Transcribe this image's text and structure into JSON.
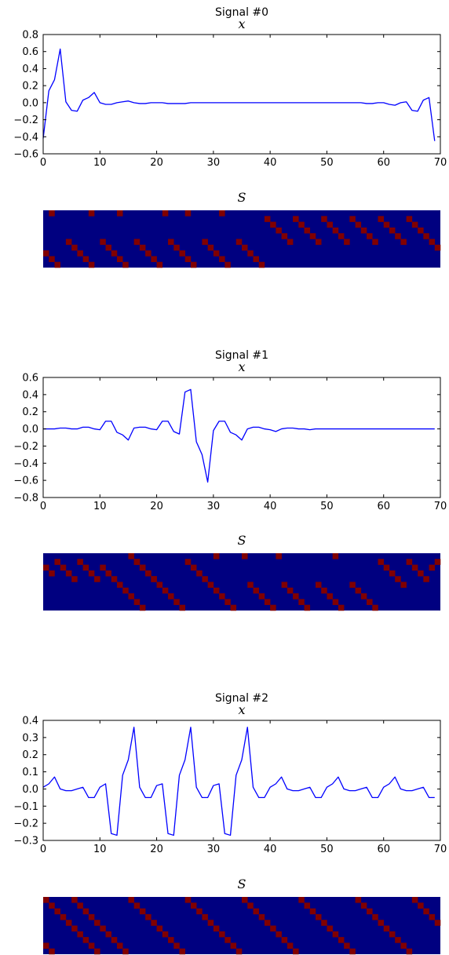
{
  "colors": {
    "line": "#0000ff",
    "matrix_bg": "#000080",
    "matrix_on": "#800000",
    "axis": "#000000"
  },
  "chart_data": [
    {
      "type": "line",
      "title": "Signal #0",
      "subtitle": "x",
      "xlim": [
        0,
        70
      ],
      "ylim": [
        -0.6,
        0.8
      ],
      "xticks": [
        "0",
        "10",
        "20",
        "30",
        "40",
        "50",
        "60",
        "70"
      ],
      "yticks": [
        "0.8",
        "0.6",
        "0.4",
        "0.2",
        "0.0",
        "−0.2",
        "−0.4",
        "−0.6"
      ],
      "grid": false,
      "series": [
        {
          "x": [
            0,
            1,
            2,
            3,
            4,
            5,
            6,
            7,
            8,
            9,
            10,
            11,
            12,
            13,
            14,
            15,
            16,
            17,
            18,
            19,
            20,
            21,
            22,
            23,
            24,
            25,
            26,
            27,
            28,
            29,
            30,
            31,
            32,
            33,
            34,
            35,
            36,
            37,
            38,
            39,
            40,
            41,
            42,
            43,
            44,
            45,
            46,
            47,
            48,
            49,
            50,
            51,
            52,
            53,
            54,
            55,
            56,
            57,
            58,
            59,
            60,
            61,
            62,
            63,
            64,
            65,
            66,
            67,
            68,
            69
          ],
          "y": [
            -0.42,
            0.14,
            0.27,
            0.63,
            0.01,
            -0.09,
            -0.1,
            0.03,
            0.06,
            0.12,
            0.0,
            -0.02,
            -0.02,
            0.0,
            0.01,
            0.02,
            0.0,
            -0.01,
            -0.01,
            0.0,
            0.0,
            0.0,
            -0.01,
            -0.01,
            -0.01,
            -0.01,
            0.0,
            0.0,
            0.0,
            0.0,
            0.0,
            0.0,
            0.0,
            0.0,
            0.0,
            0.0,
            0.0,
            0.0,
            0.0,
            0.0,
            0.0,
            0.0,
            0.0,
            0.0,
            0.0,
            0.0,
            0.0,
            0.0,
            0.0,
            0.0,
            0.0,
            0.0,
            0.0,
            0.0,
            0.0,
            0.0,
            0.0,
            -0.01,
            -0.01,
            0.0,
            0.0,
            -0.02,
            -0.03,
            0.0,
            0.01,
            -0.09,
            -0.1,
            0.03,
            0.06,
            -0.45
          ]
        }
      ]
    },
    {
      "type": "heatmap",
      "title": "S",
      "cols": 70,
      "rows": 10,
      "active_cells": [
        [
          1,
          0
        ],
        [
          8,
          0
        ],
        [
          13,
          0
        ],
        [
          21,
          0
        ],
        [
          25,
          0
        ],
        [
          31,
          0
        ],
        [
          39,
          1
        ],
        [
          40,
          2
        ],
        [
          41,
          3
        ],
        [
          42,
          4
        ],
        [
          43,
          5
        ],
        [
          44,
          1
        ],
        [
          45,
          2
        ],
        [
          46,
          3
        ],
        [
          47,
          4
        ],
        [
          48,
          5
        ],
        [
          49,
          1
        ],
        [
          50,
          2
        ],
        [
          51,
          3
        ],
        [
          52,
          4
        ],
        [
          53,
          5
        ],
        [
          54,
          1
        ],
        [
          55,
          2
        ],
        [
          56,
          3
        ],
        [
          57,
          4
        ],
        [
          58,
          5
        ],
        [
          59,
          1
        ],
        [
          60,
          2
        ],
        [
          61,
          3
        ],
        [
          62,
          4
        ],
        [
          63,
          5
        ],
        [
          64,
          1
        ],
        [
          65,
          2
        ],
        [
          66,
          3
        ],
        [
          67,
          4
        ],
        [
          68,
          5
        ],
        [
          69,
          6
        ],
        [
          4,
          5
        ],
        [
          5,
          6
        ],
        [
          6,
          7
        ],
        [
          7,
          8
        ],
        [
          8,
          9
        ],
        [
          10,
          5
        ],
        [
          11,
          6
        ],
        [
          12,
          7
        ],
        [
          13,
          8
        ],
        [
          14,
          9
        ],
        [
          16,
          5
        ],
        [
          17,
          6
        ],
        [
          18,
          7
        ],
        [
          19,
          8
        ],
        [
          20,
          9
        ],
        [
          22,
          5
        ],
        [
          23,
          6
        ],
        [
          24,
          7
        ],
        [
          25,
          8
        ],
        [
          26,
          9
        ],
        [
          28,
          5
        ],
        [
          29,
          6
        ],
        [
          30,
          7
        ],
        [
          31,
          8
        ],
        [
          32,
          9
        ],
        [
          34,
          5
        ],
        [
          35,
          6
        ],
        [
          36,
          7
        ],
        [
          37,
          8
        ],
        [
          38,
          9
        ],
        [
          0,
          7
        ],
        [
          1,
          8
        ],
        [
          2,
          9
        ]
      ]
    },
    {
      "type": "line",
      "title": "Signal #1",
      "subtitle": "x",
      "xlim": [
        0,
        70
      ],
      "ylim": [
        -0.8,
        0.6
      ],
      "xticks": [
        "0",
        "10",
        "20",
        "30",
        "40",
        "50",
        "60",
        "70"
      ],
      "yticks": [
        "0.6",
        "0.4",
        "0.2",
        "0.0",
        "−0.2",
        "−0.4",
        "−0.6",
        "−0.8"
      ],
      "grid": false,
      "series": [
        {
          "x": [
            0,
            1,
            2,
            3,
            4,
            5,
            6,
            7,
            8,
            9,
            10,
            11,
            12,
            13,
            14,
            15,
            16,
            17,
            18,
            19,
            20,
            21,
            22,
            23,
            24,
            25,
            26,
            27,
            28,
            29,
            30,
            31,
            32,
            33,
            34,
            35,
            36,
            37,
            38,
            39,
            40,
            41,
            42,
            43,
            44,
            45,
            46,
            47,
            48,
            49,
            50,
            51,
            52,
            53,
            54,
            55,
            56,
            57,
            58,
            59,
            60,
            61,
            62,
            63,
            64,
            65,
            66,
            67,
            68,
            69
          ],
          "y": [
            0.0,
            0.0,
            0.0,
            0.01,
            0.01,
            0.0,
            0.0,
            0.02,
            0.02,
            0.0,
            -0.01,
            0.09,
            0.09,
            -0.04,
            -0.07,
            -0.13,
            0.01,
            0.02,
            0.02,
            0.0,
            -0.01,
            0.09,
            0.09,
            -0.03,
            -0.06,
            0.43,
            0.46,
            -0.15,
            -0.3,
            -0.62,
            -0.02,
            0.09,
            0.09,
            -0.04,
            -0.07,
            -0.13,
            0.0,
            0.02,
            0.02,
            0.0,
            -0.01,
            -0.03,
            0.0,
            0.01,
            0.01,
            0.0,
            0.0,
            -0.01,
            0.0,
            0.0,
            0.0,
            0.0,
            0.0,
            0.0,
            0.0,
            0.0,
            0.0,
            0.0,
            0.0,
            0.0,
            0.0,
            0.0,
            0.0,
            0.0,
            0.0,
            0.0,
            0.0,
            0.0,
            0.0,
            0.0
          ]
        }
      ]
    },
    {
      "type": "heatmap",
      "title": "S",
      "cols": 70,
      "rows": 10,
      "active_cells": [
        [
          0,
          2
        ],
        [
          1,
          3
        ],
        [
          2,
          1
        ],
        [
          3,
          2
        ],
        [
          4,
          3
        ],
        [
          5,
          4
        ],
        [
          6,
          1
        ],
        [
          7,
          2
        ],
        [
          8,
          3
        ],
        [
          9,
          4
        ],
        [
          15,
          0
        ],
        [
          16,
          1
        ],
        [
          17,
          2
        ],
        [
          18,
          3
        ],
        [
          19,
          4
        ],
        [
          20,
          5
        ],
        [
          21,
          6
        ],
        [
          22,
          7
        ],
        [
          23,
          8
        ],
        [
          24,
          9
        ],
        [
          30,
          0
        ],
        [
          35,
          0
        ],
        [
          41,
          0
        ],
        [
          51,
          0
        ],
        [
          16,
          1
        ],
        [
          17,
          2
        ],
        [
          18,
          3
        ],
        [
          19,
          4
        ],
        [
          10,
          2
        ],
        [
          11,
          3
        ],
        [
          12,
          4
        ],
        [
          13,
          5
        ],
        [
          14,
          6
        ],
        [
          15,
          7
        ],
        [
          16,
          8
        ],
        [
          17,
          9
        ],
        [
          25,
          1
        ],
        [
          26,
          2
        ],
        [
          27,
          3
        ],
        [
          28,
          4
        ],
        [
          29,
          5
        ],
        [
          30,
          6
        ],
        [
          31,
          7
        ],
        [
          32,
          8
        ],
        [
          33,
          9
        ],
        [
          36,
          5
        ],
        [
          37,
          6
        ],
        [
          38,
          7
        ],
        [
          39,
          8
        ],
        [
          40,
          9
        ],
        [
          42,
          5
        ],
        [
          43,
          6
        ],
        [
          44,
          7
        ],
        [
          45,
          8
        ],
        [
          46,
          9
        ],
        [
          48,
          5
        ],
        [
          49,
          6
        ],
        [
          50,
          7
        ],
        [
          51,
          8
        ],
        [
          52,
          9
        ],
        [
          54,
          5
        ],
        [
          55,
          6
        ],
        [
          56,
          7
        ],
        [
          57,
          8
        ],
        [
          58,
          9
        ],
        [
          59,
          1
        ],
        [
          60,
          2
        ],
        [
          61,
          3
        ],
        [
          62,
          4
        ],
        [
          63,
          5
        ],
        [
          64,
          1
        ],
        [
          65,
          2
        ],
        [
          66,
          3
        ],
        [
          67,
          4
        ],
        [
          68,
          2
        ],
        [
          69,
          1
        ]
      ]
    },
    {
      "type": "line",
      "title": "Signal #2",
      "subtitle": "x",
      "xlim": [
        0,
        70
      ],
      "ylim": [
        -0.3,
        0.4
      ],
      "xticks": [
        "0",
        "10",
        "20",
        "30",
        "40",
        "50",
        "60",
        "70"
      ],
      "yticks": [
        "0.4",
        "0.3",
        "0.2",
        "0.1",
        "0.0",
        "−0.1",
        "−0.2",
        "−0.3"
      ],
      "grid": false,
      "series": [
        {
          "x": [
            0,
            1,
            2,
            3,
            4,
            5,
            6,
            7,
            8,
            9,
            10,
            11,
            12,
            13,
            14,
            15,
            16,
            17,
            18,
            19,
            20,
            21,
            22,
            23,
            24,
            25,
            26,
            27,
            28,
            29,
            30,
            31,
            32,
            33,
            34,
            35,
            36,
            37,
            38,
            39,
            40,
            41,
            42,
            43,
            44,
            45,
            46,
            47,
            48,
            49,
            50,
            51,
            52,
            53,
            54,
            55,
            56,
            57,
            58,
            59,
            60,
            61,
            62,
            63,
            64,
            65,
            66,
            67,
            68,
            69
          ],
          "y": [
            0.01,
            0.03,
            0.07,
            0.0,
            -0.01,
            -0.01,
            0.0,
            0.01,
            -0.05,
            -0.05,
            0.01,
            0.03,
            -0.26,
            -0.27,
            0.08,
            0.17,
            0.36,
            0.01,
            -0.05,
            -0.05,
            0.02,
            0.03,
            -0.26,
            -0.27,
            0.08,
            0.17,
            0.36,
            0.01,
            -0.05,
            -0.05,
            0.02,
            0.03,
            -0.26,
            -0.27,
            0.08,
            0.17,
            0.36,
            0.01,
            -0.05,
            -0.05,
            0.01,
            0.03,
            0.07,
            0.0,
            -0.01,
            -0.01,
            0.0,
            0.01,
            -0.05,
            -0.05,
            0.01,
            0.03,
            0.07,
            0.0,
            -0.01,
            -0.01,
            0.0,
            0.01,
            -0.05,
            -0.05,
            0.01,
            0.03,
            0.07,
            0.0,
            -0.01,
            -0.01,
            0.0,
            0.01,
            -0.05,
            -0.05
          ]
        }
      ]
    },
    {
      "type": "heatmap",
      "title": "S",
      "cols": 70,
      "rows": 10,
      "active_cells": [
        [
          0,
          0
        ],
        [
          1,
          1
        ],
        [
          2,
          2
        ],
        [
          3,
          3
        ],
        [
          4,
          4
        ],
        [
          5,
          5
        ],
        [
          6,
          6
        ],
        [
          7,
          7
        ],
        [
          8,
          8
        ],
        [
          9,
          9
        ],
        [
          5,
          0
        ],
        [
          6,
          1
        ],
        [
          7,
          2
        ],
        [
          8,
          3
        ],
        [
          9,
          4
        ],
        [
          10,
          5
        ],
        [
          11,
          6
        ],
        [
          12,
          7
        ],
        [
          13,
          8
        ],
        [
          14,
          9
        ],
        [
          15,
          0
        ],
        [
          16,
          1
        ],
        [
          17,
          2
        ],
        [
          18,
          3
        ],
        [
          19,
          4
        ],
        [
          20,
          5
        ],
        [
          21,
          6
        ],
        [
          22,
          7
        ],
        [
          23,
          8
        ],
        [
          24,
          9
        ],
        [
          25,
          0
        ],
        [
          26,
          1
        ],
        [
          27,
          2
        ],
        [
          28,
          3
        ],
        [
          29,
          4
        ],
        [
          30,
          5
        ],
        [
          31,
          6
        ],
        [
          32,
          7
        ],
        [
          33,
          8
        ],
        [
          34,
          9
        ],
        [
          35,
          0
        ],
        [
          36,
          1
        ],
        [
          37,
          2
        ],
        [
          38,
          3
        ],
        [
          39,
          4
        ],
        [
          40,
          5
        ],
        [
          41,
          6
        ],
        [
          42,
          7
        ],
        [
          43,
          8
        ],
        [
          44,
          9
        ],
        [
          45,
          0
        ],
        [
          46,
          1
        ],
        [
          47,
          2
        ],
        [
          48,
          3
        ],
        [
          49,
          4
        ],
        [
          50,
          5
        ],
        [
          51,
          6
        ],
        [
          52,
          7
        ],
        [
          53,
          8
        ],
        [
          54,
          9
        ],
        [
          55,
          0
        ],
        [
          56,
          1
        ],
        [
          57,
          2
        ],
        [
          58,
          3
        ],
        [
          59,
          4
        ],
        [
          60,
          5
        ],
        [
          61,
          6
        ],
        [
          62,
          7
        ],
        [
          63,
          8
        ],
        [
          64,
          9
        ],
        [
          65,
          0
        ],
        [
          66,
          1
        ],
        [
          67,
          2
        ],
        [
          68,
          3
        ],
        [
          69,
          4
        ],
        [
          0,
          8
        ],
        [
          1,
          9
        ]
      ]
    }
  ]
}
